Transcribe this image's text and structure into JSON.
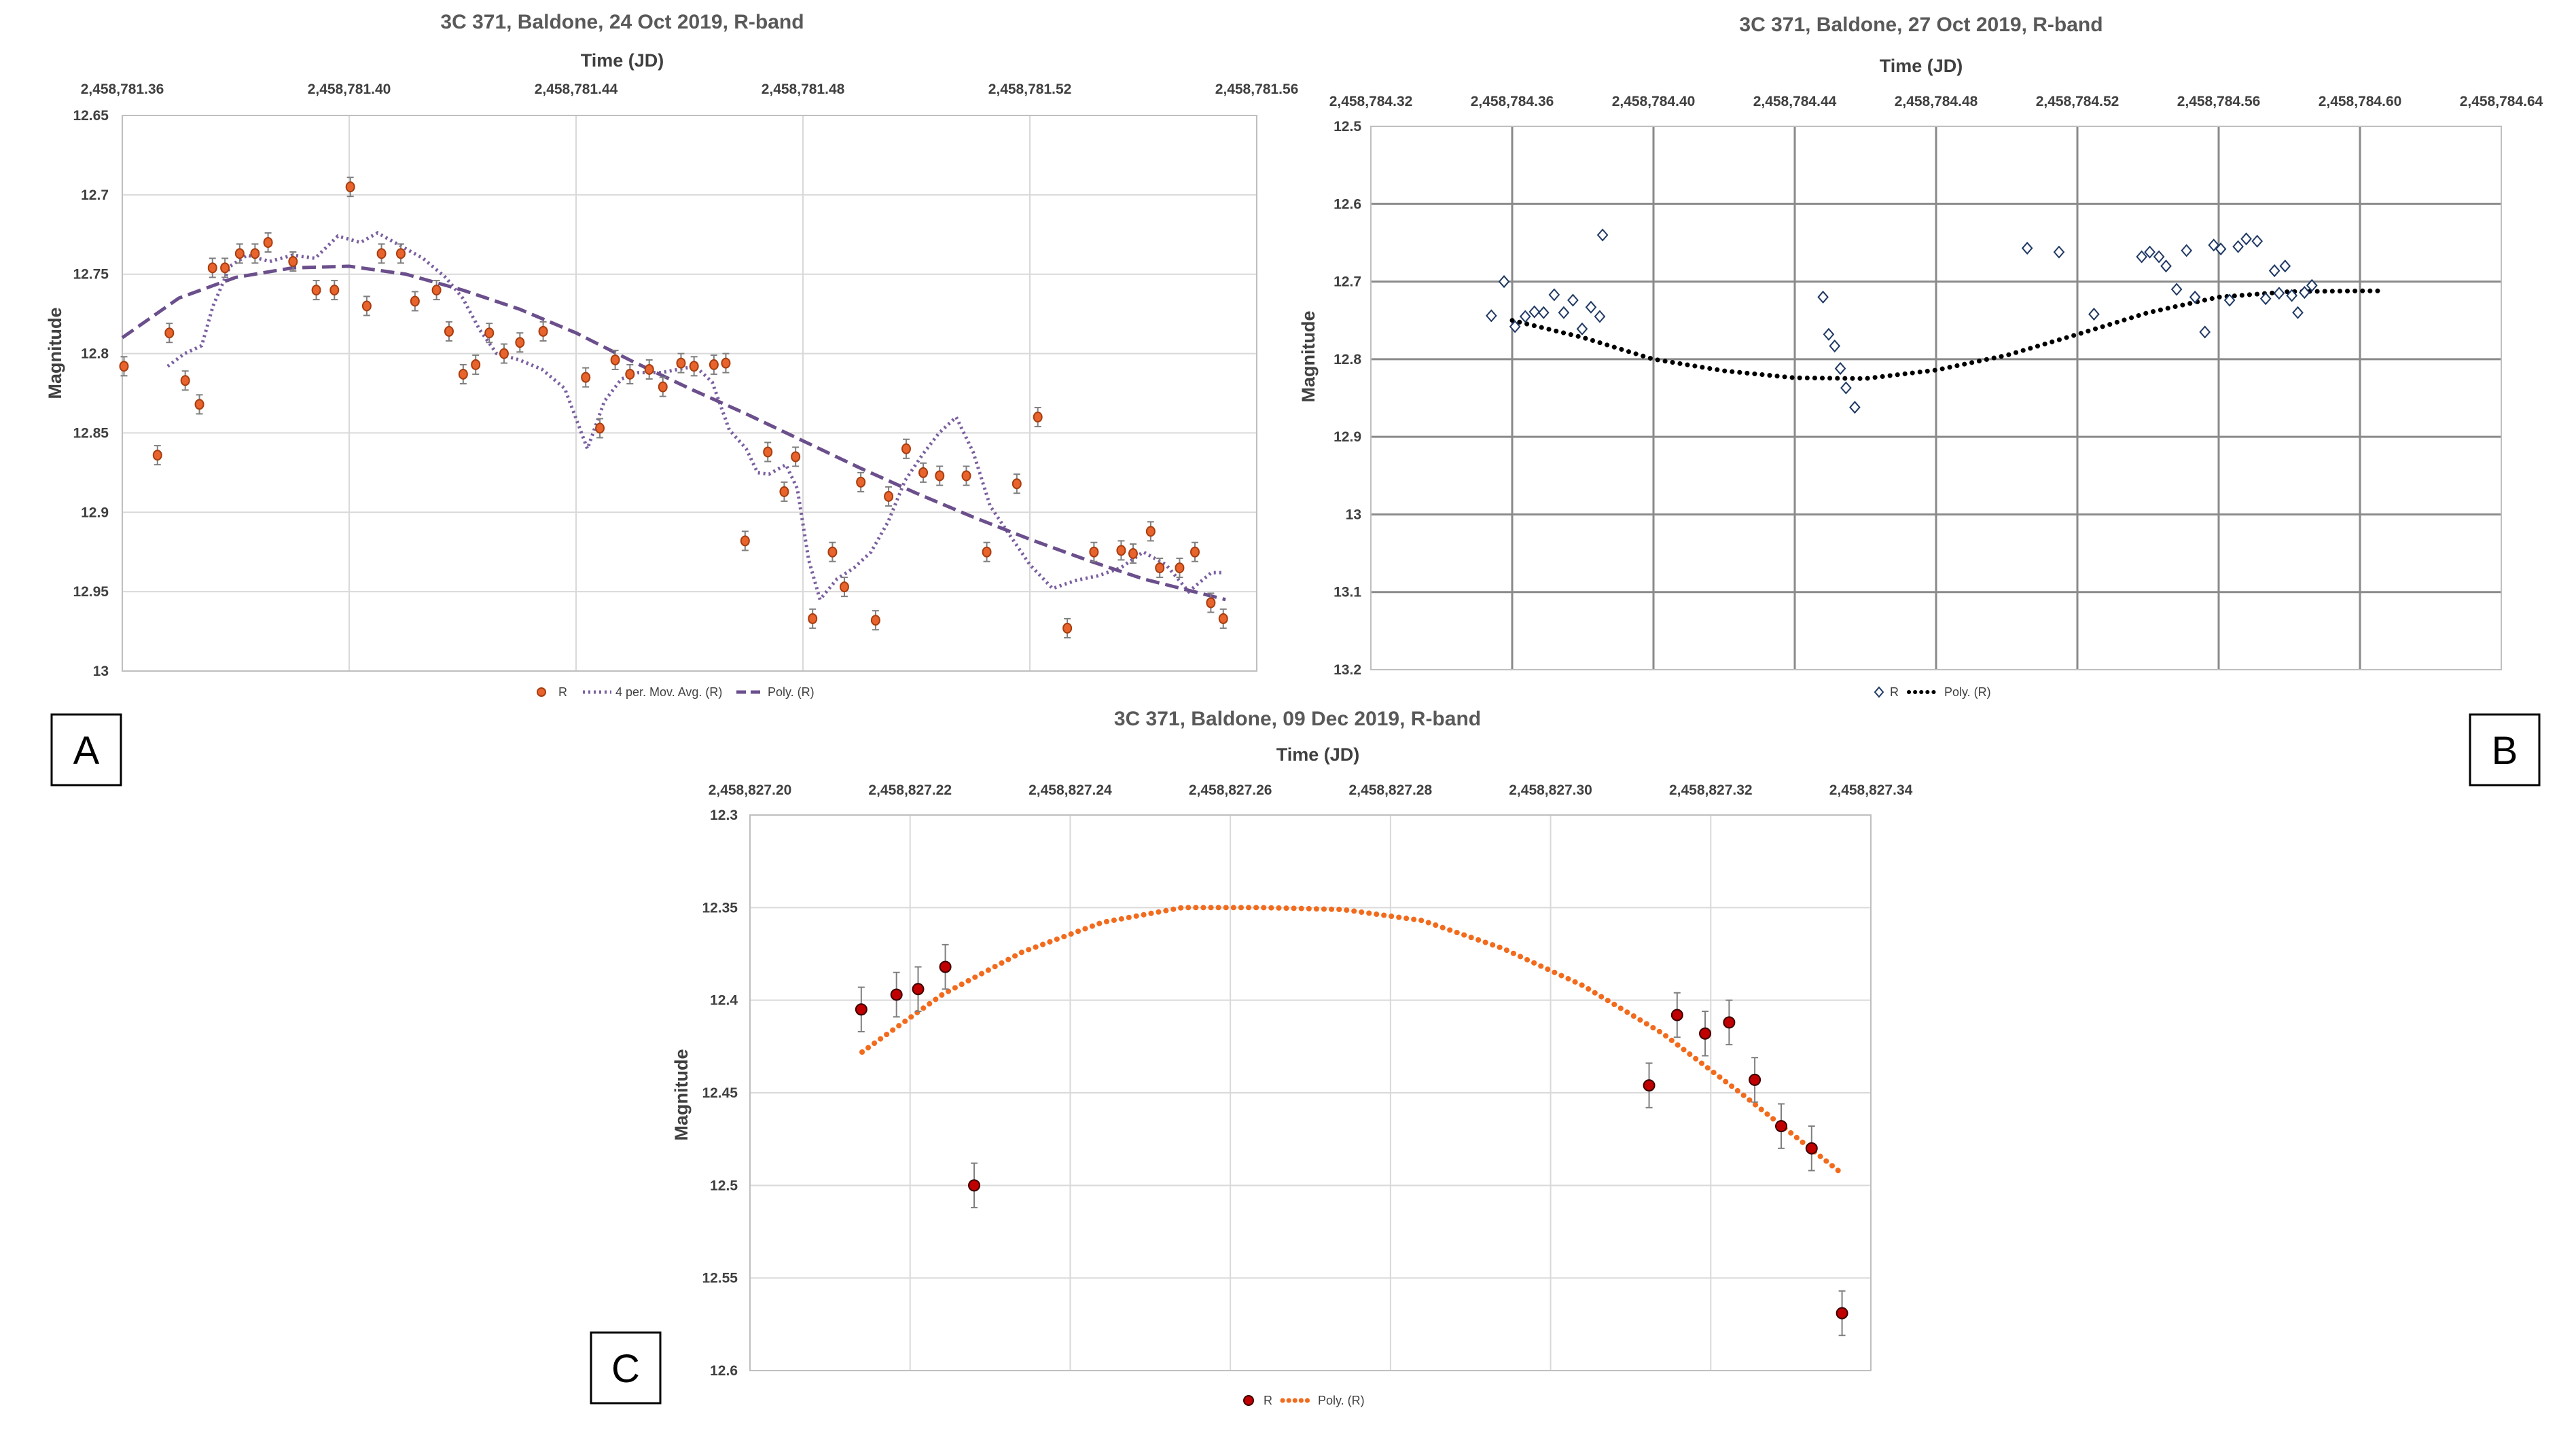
{
  "chart_data": [
    {
      "id": "A",
      "type": "scatter",
      "panel_label": "A",
      "title": "3C 371, Baldone, 24 Oct 2019, R-band",
      "xlabel": "Time (JD)",
      "ylabel": "Magnitude",
      "xlim": [
        2458781.36,
        2458781.56
      ],
      "xticks": [
        2458781.36,
        2458781.4,
        2458781.44,
        2458781.48,
        2458781.52,
        2458781.56
      ],
      "xtick_labels": [
        "2,458,781.36",
        "2,458,781.40",
        "2,458,781.44",
        "2,458,781.48",
        "2,458,781.52",
        "2,458,781.56"
      ],
      "ylim": [
        12.65,
        13.0
      ],
      "y_inverted": true,
      "yticks": [
        12.65,
        12.7,
        12.75,
        12.8,
        12.85,
        12.9,
        12.95,
        13.0
      ],
      "ytick_labels": [
        "12.65",
        "12.7",
        "12.75",
        "12.8",
        "12.85",
        "12.9",
        "12.95",
        "13"
      ],
      "grid": true,
      "legend": [
        "R",
        "4 per. Mov. Avg. (R)",
        "Poly. (R)"
      ],
      "legend_position": "bottom",
      "colors": {
        "marker_fill": "#e8642c",
        "marker_edge": "#a63d10",
        "moving_avg": "#7a5fa0",
        "poly": "#6b4f8c"
      },
      "series": [
        {
          "name": "R",
          "x": [
            2458781.3603,
            2458781.3662,
            2458781.3683,
            2458781.3711,
            2458781.3736,
            2458781.3759,
            2458781.3781,
            2458781.3807,
            2458781.3834,
            2458781.3857,
            2458781.3901,
            2458781.3942,
            2458781.3974,
            2458781.4002,
            2458781.4031,
            2458781.4057,
            2458781.4091,
            2458781.4116,
            2458781.4154,
            2458781.4176,
            2458781.4201,
            2458781.4223,
            2458781.4247,
            2458781.4273,
            2458781.4301,
            2458781.4342,
            2458781.4417,
            2458781.4442,
            2458781.4469,
            2458781.4495,
            2458781.4529,
            2458781.4553,
            2458781.4585,
            2458781.4608,
            2458781.4643,
            2458781.4664,
            2458781.4698,
            2458781.4738,
            2458781.4767,
            2458781.4787,
            2458781.4817,
            2458781.4852,
            2458781.4873,
            2458781.4902,
            2458781.4928,
            2458781.4951,
            2458781.4982,
            2458781.5012,
            2458781.5041,
            2458781.5088,
            2458781.5124,
            2458781.5177,
            2458781.5214,
            2458781.5266,
            2458781.5313,
            2458781.5361,
            2458781.5382,
            2458781.5413,
            2458781.5429,
            2458781.5464,
            2458781.5491,
            2458781.5519,
            2458781.5541
          ],
          "y": [
            12.808,
            12.864,
            12.787,
            12.817,
            12.832,
            12.746,
            12.746,
            12.737,
            12.737,
            12.73,
            12.742,
            12.76,
            12.76,
            12.695,
            12.77,
            12.737,
            12.737,
            12.767,
            12.76,
            12.786,
            12.813,
            12.807,
            12.787,
            12.8,
            12.793,
            12.786,
            12.815,
            12.847,
            12.804,
            12.813,
            12.81,
            12.821,
            12.806,
            12.808,
            12.807,
            12.806,
            12.918,
            12.862,
            12.887,
            12.865,
            12.967,
            12.925,
            12.947,
            12.881,
            12.968,
            12.89,
            12.86,
            12.875,
            12.877,
            12.877,
            12.925,
            12.882,
            12.84,
            12.973,
            12.925,
            12.924,
            12.926,
            12.912,
            12.935,
            12.935,
            12.925,
            12.957,
            12.967
          ],
          "yerr": 0.006
        },
        {
          "name": "4 per. Mov. Avg. (R)",
          "x": [
            2458781.368,
            2458781.371,
            2458781.374,
            2458781.376,
            2458781.379,
            2458781.382,
            2458781.386,
            2458781.39,
            2458781.394,
            2458781.398,
            2458781.402,
            2458781.405,
            2458781.409,
            2458781.413,
            2458781.417,
            2458781.42,
            2458781.423,
            2458781.426,
            2458781.43,
            2458781.434,
            2458781.438,
            2458781.442,
            2458781.445,
            2458781.448,
            2458781.451,
            2458781.455,
            2458781.458,
            2458781.461,
            2458781.464,
            2458781.467,
            2458781.47,
            2458781.472,
            2458781.474,
            2458781.477,
            2458781.479,
            2458781.481,
            2458781.483,
            2458781.486,
            2458781.489,
            2458781.492,
            2458781.495,
            2458781.498,
            2458781.501,
            2458781.504,
            2458781.507,
            2458781.51,
            2458781.513,
            2458781.516,
            2458781.52,
            2458781.524,
            2458781.528,
            2458781.532,
            2458781.536,
            2458781.54,
            2458781.544,
            2458781.548,
            2458781.552,
            2458781.554
          ],
          "y": [
            12.808,
            12.8,
            12.795,
            12.77,
            12.745,
            12.738,
            12.742,
            12.738,
            12.74,
            12.726,
            12.73,
            12.724,
            12.732,
            12.74,
            12.752,
            12.765,
            12.785,
            12.8,
            12.804,
            12.81,
            12.822,
            12.86,
            12.83,
            12.816,
            12.812,
            12.812,
            12.81,
            12.808,
            12.818,
            12.848,
            12.86,
            12.875,
            12.876,
            12.87,
            12.885,
            12.93,
            12.955,
            12.942,
            12.935,
            12.925,
            12.906,
            12.88,
            12.864,
            12.85,
            12.84,
            12.862,
            12.896,
            12.912,
            12.933,
            12.948,
            12.943,
            12.94,
            12.935,
            12.925,
            12.933,
            12.95,
            12.938,
            12.938
          ]
        },
        {
          "name": "Poly. (R)",
          "x": [
            2458781.36,
            2458781.37,
            2458781.38,
            2458781.39,
            2458781.4,
            2458781.41,
            2458781.42,
            2458781.43,
            2458781.44,
            2458781.45,
            2458781.46,
            2458781.47,
            2458781.48,
            2458781.49,
            2458781.5,
            2458781.51,
            2458781.52,
            2458781.53,
            2458781.54,
            2458781.5545
          ],
          "y": [
            12.79,
            12.765,
            12.752,
            12.746,
            12.745,
            12.75,
            12.76,
            12.772,
            12.787,
            12.805,
            12.822,
            12.838,
            12.855,
            12.872,
            12.888,
            12.903,
            12.917,
            12.93,
            12.942,
            12.955
          ]
        }
      ]
    },
    {
      "id": "B",
      "type": "scatter",
      "panel_label": "B",
      "title": "3C 371, Baldone, 27 Oct 2019, R-band",
      "xlabel": "Time (JD)",
      "ylabel": "Magnitude",
      "xlim": [
        2458784.32,
        2458784.64
      ],
      "xticks": [
        2458784.32,
        2458784.36,
        2458784.4,
        2458784.44,
        2458784.48,
        2458784.52,
        2458784.56,
        2458784.6,
        2458784.64
      ],
      "xtick_labels": [
        "2,458,784.32",
        "2,458,784.36",
        "2,458,784.40",
        "2,458,784.44",
        "2,458,784.48",
        "2,458,784.52",
        "2,458,784.56",
        "2,458,784.60",
        "2,458,784.64"
      ],
      "ylim": [
        12.5,
        13.2
      ],
      "y_inverted": true,
      "yticks": [
        12.5,
        12.6,
        12.7,
        12.8,
        12.9,
        13.0,
        13.1,
        13.2
      ],
      "ytick_labels": [
        "12.5",
        "12.6",
        "12.7",
        "12.8",
        "12.9",
        "13",
        "13.1",
        "13.2"
      ],
      "grid": true,
      "legend": [
        "R",
        "Poly. (R)"
      ],
      "legend_position": "bottom",
      "colors": {
        "marker_edge": "#1f3864",
        "poly": "#000000"
      },
      "series": [
        {
          "name": "R",
          "x": [
            2458784.3541,
            2458784.3577,
            2458784.3608,
            2458784.3637,
            2458784.3663,
            2458784.3689,
            2458784.3719,
            2458784.3746,
            2458784.3772,
            2458784.3798,
            2458784.3823,
            2458784.3848,
            2458784.3856,
            2458784.448,
            2458784.4496,
            2458784.4513,
            2458784.4529,
            2458784.4545,
            2458784.457,
            2458784.5058,
            2458784.5148,
            2458784.5247,
            2458784.5382,
            2458784.5405,
            2458784.5431,
            2458784.5451,
            2458784.5481,
            2458784.5509,
            2458784.5533,
            2458784.5561,
            2458784.5586,
            2458784.5606,
            2458784.5631,
            2458784.5655,
            2458784.5678,
            2458784.5709,
            2458784.5733,
            2458784.5758,
            2458784.5771,
            2458784.5788,
            2458784.5807,
            2458784.5824,
            2458784.5843,
            2458784.5864
          ],
          "y": [
            12.744,
            12.7,
            12.758,
            12.745,
            12.739,
            12.74,
            12.717,
            12.74,
            12.724,
            12.761,
            12.733,
            12.745,
            12.64,
            12.72,
            12.768,
            12.783,
            12.812,
            12.837,
            12.862,
            12.657,
            12.662,
            12.742,
            12.668,
            12.662,
            12.668,
            12.68,
            12.71,
            12.66,
            12.72,
            12.765,
            12.653,
            12.658,
            12.724,
            12.655,
            12.645,
            12.648,
            12.722,
            12.686,
            12.715,
            12.68,
            12.718,
            12.74,
            12.714,
            12.705
          ],
          "markers_extra": []
        },
        {
          "name": "Poly. (R)",
          "x": [
            2458784.36,
            2458784.38,
            2458784.4,
            2458784.42,
            2458784.44,
            2458784.46,
            2458784.48,
            2458784.5,
            2458784.52,
            2458784.54,
            2458784.56,
            2458784.58,
            2458784.6,
            2458784.605
          ],
          "y": [
            12.75,
            12.772,
            12.8,
            12.815,
            12.824,
            12.825,
            12.814,
            12.795,
            12.768,
            12.74,
            12.72,
            12.713,
            12.712,
            12.712
          ]
        }
      ]
    },
    {
      "id": "C",
      "type": "scatter",
      "panel_label": "C",
      "title": "3C 371, Baldone, 09 Dec 2019, R-band",
      "xlabel": "Time (JD)",
      "ylabel": "Magnitude",
      "xlim": [
        2458827.2,
        2458827.34
      ],
      "xticks": [
        2458827.2,
        2458827.22,
        2458827.24,
        2458827.26,
        2458827.28,
        2458827.3,
        2458827.32,
        2458827.34
      ],
      "xtick_labels": [
        "2,458,827.20",
        "2,458,827.22",
        "2,458,827.24",
        "2,458,827.26",
        "2,458,827.28",
        "2,458,827.30",
        "2,458,827.32",
        "2,458,827.34"
      ],
      "ylim": [
        12.3,
        12.6
      ],
      "y_inverted": true,
      "yticks": [
        12.3,
        12.35,
        12.4,
        12.45,
        12.5,
        12.55,
        12.6
      ],
      "ytick_labels": [
        "12.3",
        "12.35",
        "12.4",
        "12.45",
        "12.5",
        "12.55",
        "12.6"
      ],
      "grid": true,
      "legend": [
        "R",
        "Poly. (R)"
      ],
      "legend_position": "bottom",
      "colors": {
        "marker_fill": "#c00000",
        "marker_edge": "#3a0000",
        "poly": "#f26b1d"
      },
      "series": [
        {
          "name": "R",
          "x": [
            2458827.2139,
            2458827.2183,
            2458827.221,
            2458827.2244,
            2458827.228,
            2458827.3123,
            2458827.3158,
            2458827.3193,
            2458827.3223,
            2458827.3255,
            2458827.3288,
            2458827.3326,
            2458827.3364
          ],
          "y": [
            12.405,
            12.397,
            12.394,
            12.382,
            12.5,
            12.446,
            12.408,
            12.418,
            12.412,
            12.443,
            12.468,
            12.48,
            12.569
          ],
          "yerr": 0.012
        },
        {
          "name": "Poly. (R)",
          "x": [
            2458827.214,
            2458827.224,
            2458827.234,
            2458827.244,
            2458827.254,
            2458827.264,
            2458827.274,
            2458827.284,
            2458827.294,
            2458827.304,
            2458827.314,
            2458827.324,
            2458827.3365
          ],
          "y": [
            12.428,
            12.397,
            12.374,
            12.358,
            12.35,
            12.35,
            12.351,
            12.357,
            12.372,
            12.392,
            12.418,
            12.451,
            12.494
          ]
        }
      ]
    }
  ]
}
